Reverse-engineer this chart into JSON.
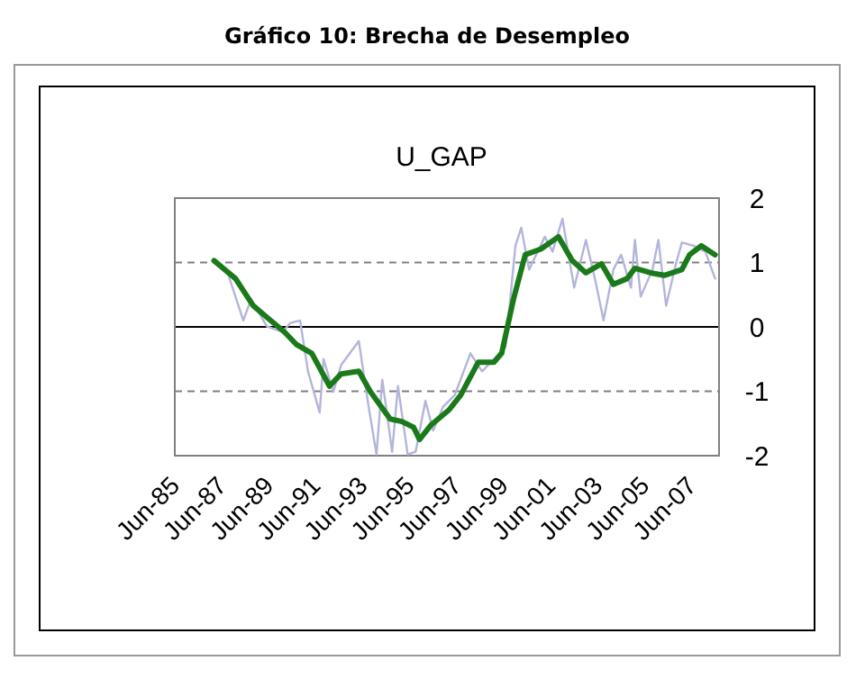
{
  "chart_data": {
    "type": "line",
    "title": "Gráfico 10: Brecha de Desempleo",
    "subtitle": "U_GAP",
    "series": [
      {
        "color": "#b4b4dc",
        "x": [
          "1987-02",
          "1987-09",
          "1988-05",
          "1988-09",
          "1989-05",
          "1990-01",
          "1990-05",
          "1990-10",
          "1991-02",
          "1991-08",
          "1991-10",
          "1992-03",
          "1992-07",
          "1993-04",
          "1993-09",
          "1994-01",
          "1994-04",
          "1994-09",
          "1994-12",
          "1995-05",
          "1995-09",
          "1996-02",
          "1996-06",
          "1996-11",
          "1997-05",
          "1998-01",
          "1998-07",
          "1999-01",
          "1999-07",
          "1999-12",
          "2000-03",
          "2000-07",
          "2001-03",
          "2001-07",
          "2001-12",
          "2002-06",
          "2002-12",
          "2003-05",
          "2003-09",
          "2004-02",
          "2004-06",
          "2004-11",
          "2005-01",
          "2005-04",
          "2005-10",
          "2006-01",
          "2006-05",
          "2006-10",
          "2007-01",
          "2007-07",
          "2008-01",
          "2008-06"
        ],
        "values": [
          1.0,
          0.84,
          0.1,
          0.43,
          0.01,
          -0.08,
          0.06,
          0.1,
          -0.69,
          -1.33,
          -0.5,
          -1.01,
          -0.59,
          -0.22,
          -1.24,
          -1.98,
          -0.82,
          -1.94,
          -0.92,
          -1.98,
          -1.94,
          -1.15,
          -1.61,
          -1.24,
          -1.06,
          -0.41,
          -0.69,
          -0.5,
          -0.31,
          1.26,
          1.54,
          0.89,
          1.4,
          1.17,
          1.68,
          0.61,
          1.35,
          0.7,
          0.1,
          0.89,
          1.12,
          0.61,
          1.35,
          0.47,
          0.89,
          1.35,
          0.33,
          0.98,
          1.31,
          1.26,
          1.17,
          0.75
        ]
      },
      {
        "color": "#1a7a1a",
        "x": [
          "1987-02",
          "1988-01",
          "1988-10",
          "1989-05",
          "1990-02",
          "1990-08",
          "1991-04",
          "1992-01",
          "1992-07",
          "1993-04",
          "1993-10",
          "1994-08",
          "1995-02",
          "1995-08",
          "1995-11",
          "1996-05",
          "1997-02",
          "1997-08",
          "1998-05",
          "1999-01",
          "1999-05",
          "1999-11",
          "2000-05",
          "2001-01",
          "2001-10",
          "2002-05",
          "2002-12",
          "2003-08",
          "2004-02",
          "2004-09",
          "2005-01",
          "2005-09",
          "2006-04",
          "2007-01",
          "2007-05",
          "2007-11",
          "2008-06"
        ],
        "values": [
          1.03,
          0.75,
          0.33,
          0.15,
          -0.08,
          -0.27,
          -0.41,
          -0.92,
          -0.73,
          -0.69,
          -1.01,
          -1.43,
          -1.47,
          -1.56,
          -1.75,
          -1.52,
          -1.29,
          -1.06,
          -0.55,
          -0.55,
          -0.41,
          0.43,
          1.12,
          1.21,
          1.4,
          1.03,
          0.84,
          0.98,
          0.66,
          0.75,
          0.91,
          0.84,
          0.8,
          0.89,
          1.12,
          1.26,
          1.12
        ]
      }
    ],
    "xlim": [
      "1985-06",
      "2008-08"
    ],
    "xticks": [
      {
        "value": "1985-06",
        "label": "Jun-85"
      },
      {
        "value": "1987-06",
        "label": "Jun-87"
      },
      {
        "value": "1989-06",
        "label": "Jun-89"
      },
      {
        "value": "1991-06",
        "label": "Jun-91"
      },
      {
        "value": "1993-06",
        "label": "Jun-93"
      },
      {
        "value": "1995-06",
        "label": "Jun-95"
      },
      {
        "value": "1997-06",
        "label": "Jun-97"
      },
      {
        "value": "1999-06",
        "label": "Jun-99"
      },
      {
        "value": "2001-06",
        "label": "Jun-01"
      },
      {
        "value": "2003-06",
        "label": "Jun-03"
      },
      {
        "value": "2005-06",
        "label": "Jun-05"
      },
      {
        "value": "2007-06",
        "label": "Jun-07"
      }
    ],
    "ylim": [
      -2,
      2
    ],
    "yticks": [
      -2,
      -1,
      0,
      1,
      2
    ],
    "ref_lines": [
      {
        "axis": "y",
        "value": 1,
        "line_style": "dashed",
        "color": "#808080"
      },
      {
        "axis": "y",
        "value": 0,
        "line_style": "solid",
        "color": "#000000"
      },
      {
        "axis": "y",
        "value": -1,
        "line_style": "dashed",
        "color": "#808080"
      }
    ],
    "grid": false
  }
}
